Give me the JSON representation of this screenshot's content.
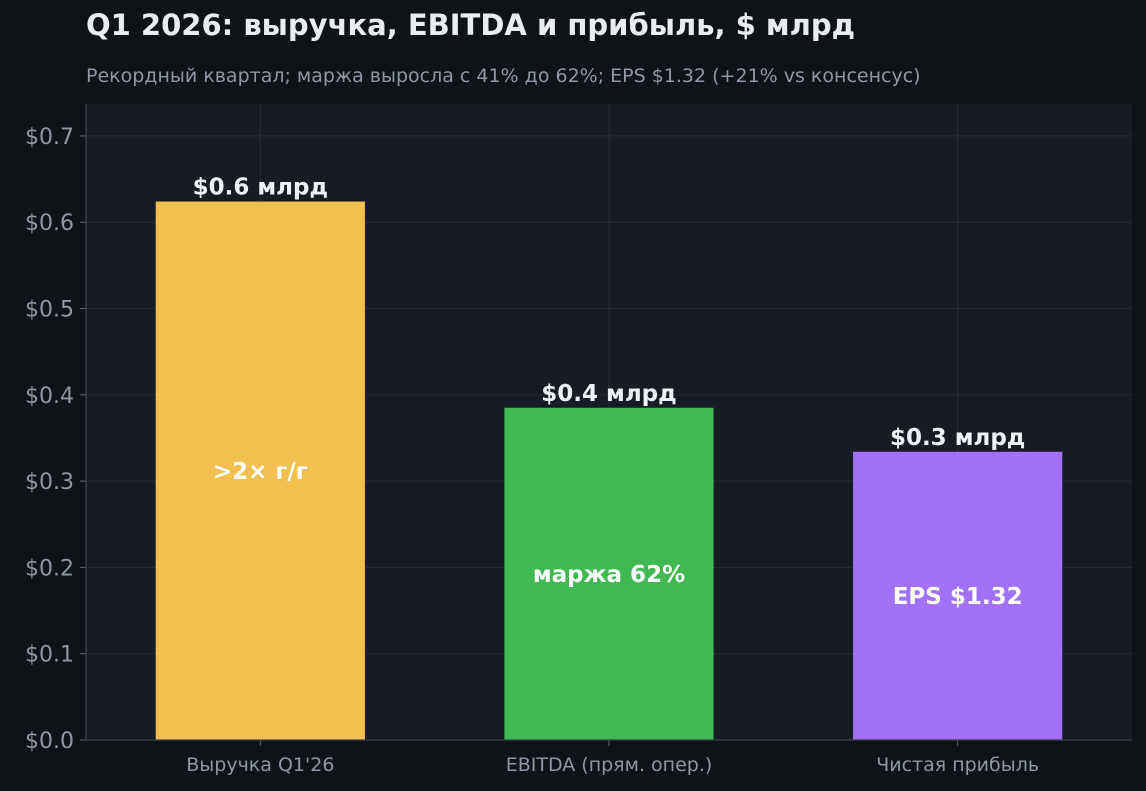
{
  "chart_data": {
    "type": "bar",
    "title": "Q1 2026: выручка, EBITDA и прибыль, $ млрд",
    "subtitle": "Рекордный квартал; маржа выросла с 41% до 62%; EPS $1.32 (+21% vs консенсус)",
    "xlabel": "",
    "ylabel": "",
    "categories": [
      "Выручка Q1'26",
      "EBITDA (прям. опер.)",
      "Чистая прибыль"
    ],
    "values": [
      0.624,
      0.385,
      0.334
    ],
    "value_labels": [
      "$0.6 млрд",
      "$0.4 млрд",
      "$0.3 млрд"
    ],
    "inner_labels": [
      ">2× г/г",
      "маржа 62%",
      "EPS $1.32"
    ],
    "colors": [
      "#f2c050",
      "#41b953",
      "#a371f7"
    ],
    "y_ticks": [
      0.0,
      0.1,
      0.2,
      0.3,
      0.4,
      0.5,
      0.6,
      0.7
    ],
    "y_tick_labels": [
      "$0.0",
      "$0.1",
      "$0.2",
      "$0.3",
      "$0.4",
      "$0.5",
      "$0.6",
      "$0.7"
    ],
    "ylim": [
      0,
      0.737
    ],
    "grid": true,
    "legend": "none"
  }
}
